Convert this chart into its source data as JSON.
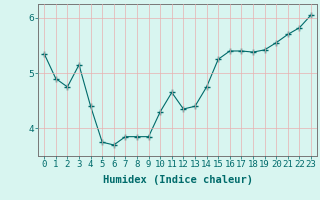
{
  "x": [
    0,
    1,
    2,
    3,
    4,
    5,
    6,
    7,
    8,
    9,
    10,
    11,
    12,
    13,
    14,
    15,
    16,
    17,
    18,
    19,
    20,
    21,
    22,
    23
  ],
  "y": [
    5.35,
    4.9,
    4.75,
    5.15,
    4.4,
    3.75,
    3.7,
    3.85,
    3.85,
    3.85,
    4.3,
    4.65,
    4.35,
    4.4,
    4.75,
    5.25,
    5.4,
    5.4,
    5.38,
    5.42,
    5.55,
    5.7,
    5.82,
    6.05
  ],
  "line_color": "#006b6b",
  "marker": "+",
  "marker_size": 4,
  "bg_color": "#d8f5f0",
  "grid_color": "#e8b0b0",
  "xlabel": "Humidex (Indice chaleur)",
  "ylim": [
    3.5,
    6.25
  ],
  "xlim": [
    -0.5,
    23.5
  ],
  "yticks": [
    4,
    5,
    6
  ],
  "xtick_labels": [
    "0",
    "1",
    "2",
    "3",
    "4",
    "5",
    "6",
    "7",
    "8",
    "9",
    "10",
    "11",
    "12",
    "13",
    "14",
    "15",
    "16",
    "17",
    "18",
    "19",
    "20",
    "21",
    "22",
    "23"
  ],
  "xlabel_fontsize": 7.5,
  "tick_fontsize": 6.5,
  "spine_color": "#777777"
}
